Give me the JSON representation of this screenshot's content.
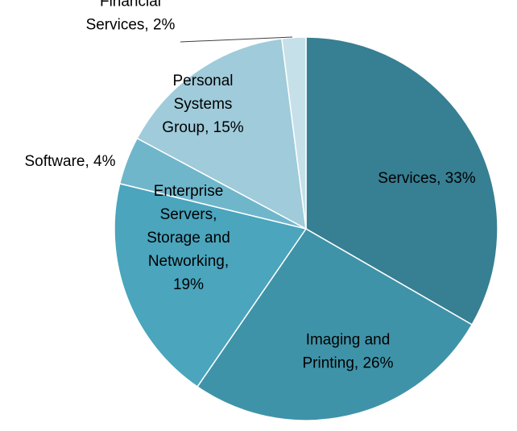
{
  "chart_data": {
    "type": "pie",
    "title": "",
    "start_angle_deg": 0,
    "direction": "clockwise",
    "slices": [
      {
        "label": [
          "Services, 33%"
        ],
        "value": 33,
        "color": "#377f93"
      },
      {
        "label": [
          "Imaging and",
          "Printing, 26%"
        ],
        "value": 26,
        "color": "#3f93a8"
      },
      {
        "label": [
          "Enterprise",
          "Servers,",
          "Storage and",
          "Networking,",
          "19%"
        ],
        "value": 19,
        "color": "#4aa5bd"
      },
      {
        "label": [
          "Software, 4%"
        ],
        "value": 4,
        "color": "#6fb6cb"
      },
      {
        "label": [
          "Personal",
          "Systems",
          "Group, 15%"
        ],
        "value": 15,
        "color": "#9fcbda"
      },
      {
        "label": [
          "Financial",
          "Services, 2%"
        ],
        "value": 2,
        "color": "#c5e0e8"
      }
    ]
  }
}
